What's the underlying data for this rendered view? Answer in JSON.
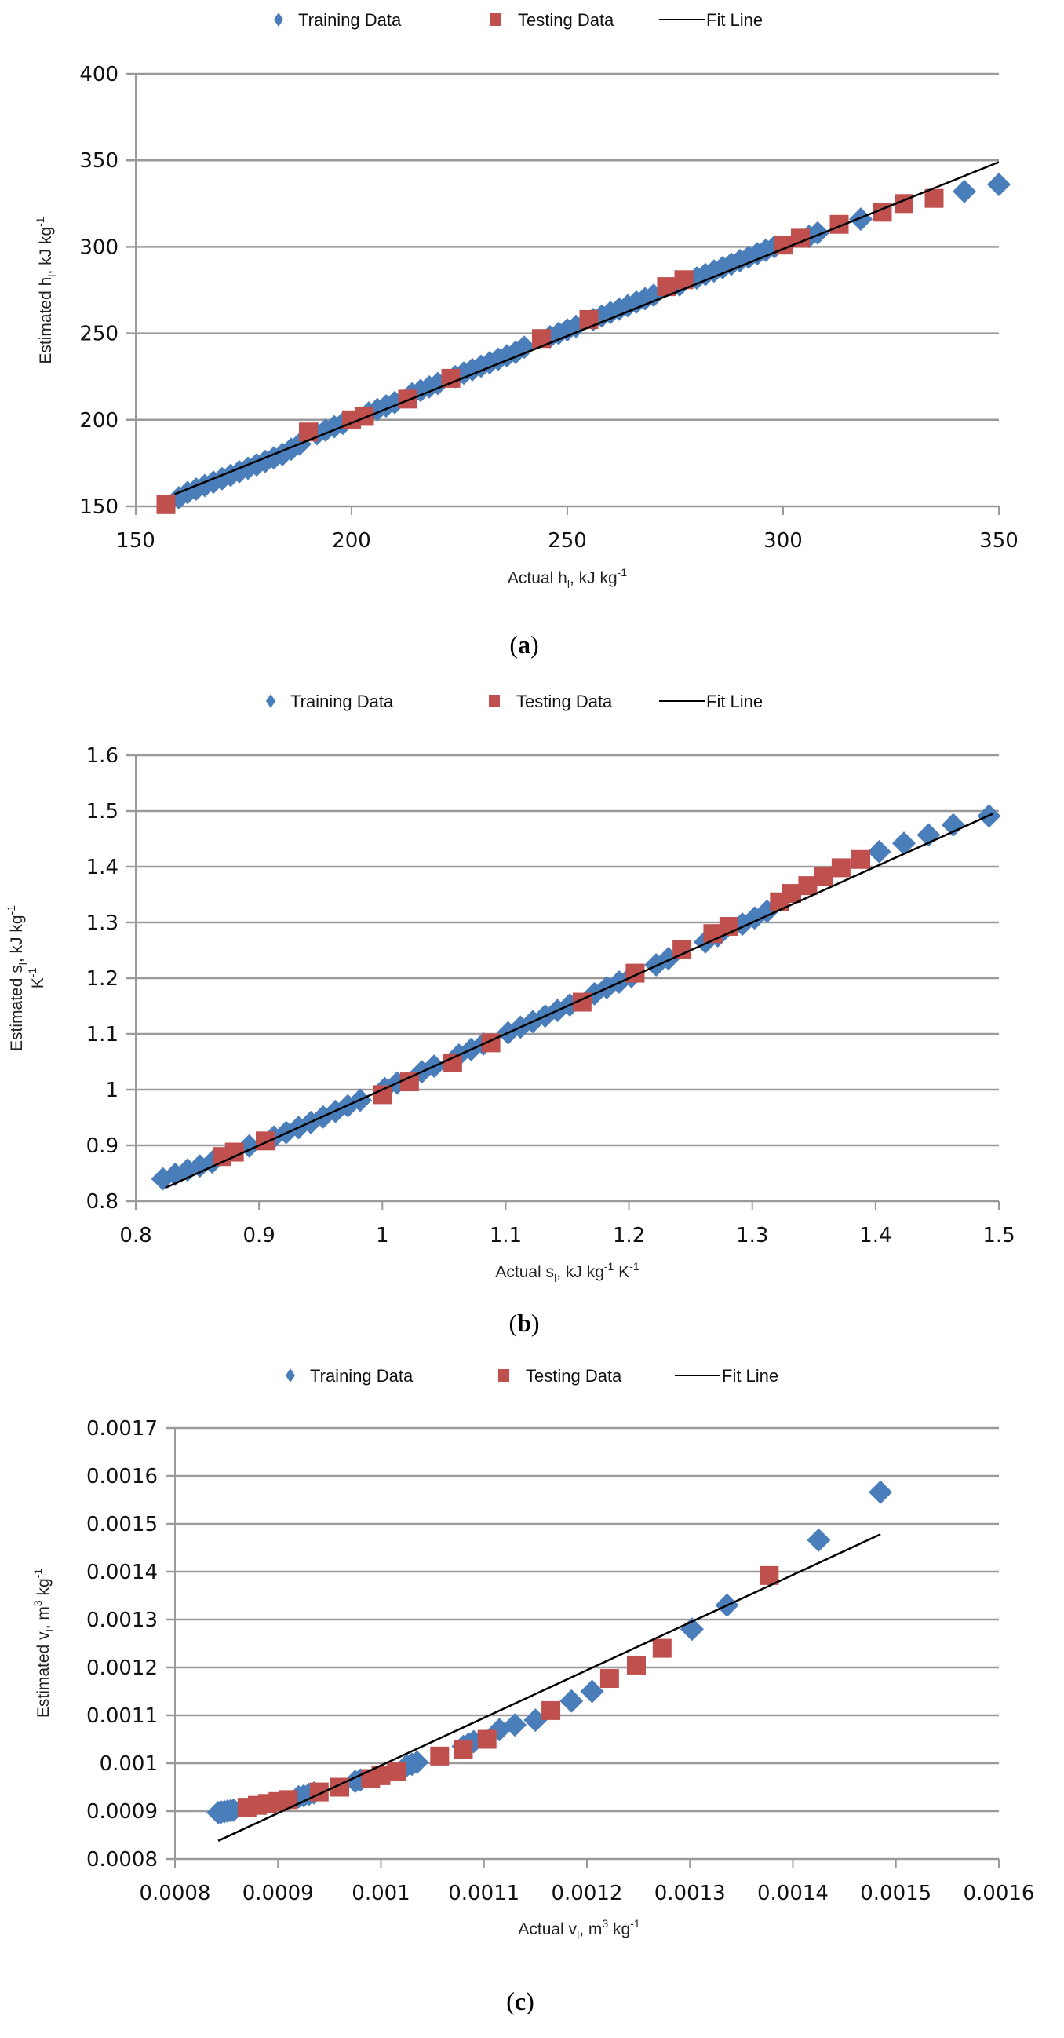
{
  "colors": {
    "training": "#4a7ebb",
    "testing": "#c0504d",
    "fit": "#000000",
    "grid": "#9a9a9a"
  },
  "chart_data": [
    {
      "id": "a",
      "type": "scatter",
      "caption_letter": "a",
      "legend": {
        "training": "Training Data",
        "testing": "Testing Data",
        "fit": "Fit Line",
        "placement": "top"
      },
      "xlabel": {
        "main": "Actual h",
        "sub": "l",
        "rest": ", kJ kg",
        "sup": "-1"
      },
      "ylabel": {
        "main": "Estimated h",
        "sub": "l",
        "rest": ", kJ kg",
        "sup": "-1"
      },
      "xlim": [
        150,
        350
      ],
      "ylim": [
        150,
        400
      ],
      "xticks": [
        "150",
        "200",
        "250",
        "300",
        "350"
      ],
      "yticks": [
        "150",
        "200",
        "250",
        "300",
        "350",
        "400"
      ],
      "xtick_values": [
        150,
        200,
        250,
        300,
        350
      ],
      "ytick_values": [
        150,
        200,
        250,
        300,
        350,
        400
      ],
      "grid": "horizontal",
      "fit": {
        "x": [
          159,
          350
        ],
        "y": [
          157,
          349
        ]
      },
      "training": {
        "x": [
          160,
          162,
          164,
          166,
          168,
          170,
          172,
          174,
          176,
          178,
          180,
          182,
          184,
          186,
          188,
          192,
          194,
          196,
          198,
          204,
          206,
          208,
          210,
          214,
          216,
          218,
          220,
          224,
          226,
          228,
          230,
          232,
          234,
          236,
          238,
          240,
          246,
          248,
          250,
          252,
          256,
          258,
          260,
          262,
          264,
          266,
          268,
          270,
          276,
          280,
          282,
          284,
          286,
          288,
          290,
          292,
          294,
          296,
          298,
          306,
          308,
          318,
          342,
          350
        ],
        "y": [
          155,
          158,
          160,
          162,
          164,
          166,
          168,
          170,
          172,
          174,
          176,
          178,
          180,
          183,
          186,
          192,
          194,
          196,
          198,
          204,
          206,
          208,
          210,
          215,
          217,
          219,
          221,
          225,
          227,
          229,
          231,
          233,
          235,
          237,
          239,
          242,
          248,
          250,
          252,
          254,
          258,
          260,
          262,
          264,
          266,
          268,
          270,
          272,
          278,
          282,
          284,
          286,
          288,
          290,
          292,
          294,
          296,
          298,
          300,
          306,
          308,
          316,
          332,
          336
        ]
      },
      "testing": {
        "x": [
          157,
          190,
          200,
          203,
          213,
          223,
          244,
          255,
          273,
          277,
          300,
          304,
          313,
          323,
          328,
          335
        ],
        "y": [
          151,
          193,
          200,
          202,
          212,
          224,
          247,
          258,
          277,
          281,
          301,
          305,
          313,
          320,
          325,
          328
        ]
      }
    },
    {
      "id": "b",
      "type": "scatter",
      "caption_letter": "b",
      "legend": {
        "training": "Training Data",
        "testing": "Testing Data",
        "fit": "Fit Line",
        "placement": "top"
      },
      "xlabel": {
        "main": "Actual s",
        "sub": "l",
        "rest": ", kJ kg",
        "sup": "-1",
        "rest2": " K",
        "sup2": "-1"
      },
      "ylabel": {
        "main": "Estimated s",
        "sub": "l",
        "rest": ", kJ kg",
        "sup": "-1",
        "line2": "K",
        "sup2": "-1"
      },
      "xlim": [
        0.8,
        1.5
      ],
      "ylim": [
        0.8,
        1.6
      ],
      "xticks": [
        "0.8",
        "0.9",
        "1",
        "1.1",
        "1.2",
        "1.3",
        "1.4",
        "1.5"
      ],
      "yticks": [
        "0.8",
        "0.9",
        "1",
        "1.1",
        "1.2",
        "1.3",
        "1.4",
        "1.5",
        "1.6"
      ],
      "xtick_values": [
        0.8,
        0.9,
        1.0,
        1.1,
        1.2,
        1.3,
        1.4,
        1.5
      ],
      "ytick_values": [
        0.8,
        0.9,
        1.0,
        1.1,
        1.2,
        1.3,
        1.4,
        1.5,
        1.6
      ],
      "grid": "horizontal",
      "fit": {
        "x": [
          0.824,
          1.495
        ],
        "y": [
          0.824,
          1.495
        ]
      },
      "training": {
        "x": [
          0.822,
          0.832,
          0.842,
          0.852,
          0.862,
          0.892,
          0.912,
          0.922,
          0.932,
          0.942,
          0.952,
          0.962,
          0.972,
          0.982,
          1.002,
          1.012,
          1.032,
          1.042,
          1.062,
          1.072,
          1.082,
          1.102,
          1.112,
          1.122,
          1.132,
          1.142,
          1.152,
          1.172,
          1.182,
          1.192,
          1.202,
          1.222,
          1.232,
          1.262,
          1.272,
          1.292,
          1.302,
          1.312,
          1.403,
          1.423,
          1.443,
          1.463,
          1.492
        ],
        "y": [
          0.84,
          0.848,
          0.856,
          0.863,
          0.87,
          0.899,
          0.915,
          0.923,
          0.932,
          0.941,
          0.951,
          0.961,
          0.971,
          0.981,
          1.002,
          1.012,
          1.032,
          1.042,
          1.062,
          1.072,
          1.082,
          1.102,
          1.112,
          1.122,
          1.132,
          1.142,
          1.152,
          1.172,
          1.183,
          1.193,
          1.203,
          1.224,
          1.235,
          1.265,
          1.276,
          1.297,
          1.308,
          1.32,
          1.427,
          1.442,
          1.457,
          1.475,
          1.491
        ]
      },
      "testing": {
        "x": [
          0.87,
          0.88,
          0.905,
          1.0,
          1.022,
          1.057,
          1.088,
          1.162,
          1.205,
          1.243,
          1.268,
          1.281,
          1.322,
          1.332,
          1.345,
          1.358,
          1.372,
          1.388
        ],
        "y": [
          0.88,
          0.888,
          0.908,
          0.991,
          1.014,
          1.048,
          1.084,
          1.157,
          1.209,
          1.251,
          1.28,
          1.293,
          1.337,
          1.352,
          1.366,
          1.382,
          1.398,
          1.413
        ]
      }
    },
    {
      "id": "c",
      "type": "scatter",
      "caption_letter": "c",
      "legend": {
        "training": "Training Data",
        "testing": "Testing Data",
        "fit": "Fit Line",
        "placement": "top"
      },
      "xlabel": {
        "main": "Actual v",
        "sub": "l",
        "rest": ", m",
        "sup": "3",
        "rest2": " kg",
        "sup2": "-1"
      },
      "ylabel": {
        "main": "Estimated v",
        "sub": "l",
        "rest": ", m",
        "sup": "3",
        "rest2": " kg",
        "sup2": "-1"
      },
      "xlim": [
        0.0008,
        0.0016
      ],
      "ylim": [
        0.0008,
        0.0017
      ],
      "xticks": [
        "0.0008",
        "0.0009",
        "0.001",
        "0.0011",
        "0.0012",
        "0.0013",
        "0.0014",
        "0.0015",
        "0.0016"
      ],
      "yticks": [
        "0.0008",
        "0.0009",
        "0.001",
        "0.0011",
        "0.0012",
        "0.0013",
        "0.0014",
        "0.0015",
        "0.0016",
        "0.0017"
      ],
      "xtick_values": [
        0.0008,
        0.0009,
        0.001,
        0.0011,
        0.0012,
        0.0013,
        0.0014,
        0.0015,
        0.0016
      ],
      "ytick_values": [
        0.0008,
        0.0009,
        0.001,
        0.0011,
        0.0012,
        0.0013,
        0.0014,
        0.0015,
        0.0016,
        0.0017
      ],
      "grid": "horizontal",
      "fit": {
        "x": [
          0.000842,
          0.001485
        ],
        "y": [
          0.000838,
          0.001478
        ]
      },
      "training": {
        "x": [
          0.000842,
          0.000845,
          0.000848,
          0.000851,
          0.000854,
          0.000857,
          0.00092,
          0.000925,
          0.00093,
          0.000935,
          0.000975,
          0.00098,
          0.001025,
          0.00103,
          0.001035,
          0.00108,
          0.001085,
          0.00109,
          0.001115,
          0.00113,
          0.00115,
          0.001185,
          0.001205,
          0.001302,
          0.001336,
          0.001425,
          0.001485
        ],
        "y": [
          0.000897,
          0.000898,
          0.000899,
          0.0009,
          0.000901,
          0.000902,
          0.00093,
          0.000932,
          0.000935,
          0.000938,
          0.000962,
          0.000965,
          0.000995,
          0.000998,
          0.001002,
          0.001035,
          0.00104,
          0.001045,
          0.00107,
          0.00108,
          0.00109,
          0.00113,
          0.00115,
          0.00128,
          0.00133,
          0.001466,
          0.001566
        ]
      },
      "testing": {
        "x": [
          0.00087,
          0.00088,
          0.00089,
          0.0009,
          0.00091,
          0.00094,
          0.00096,
          0.00099,
          0.001,
          0.001015,
          0.001057,
          0.00108,
          0.001103,
          0.001165,
          0.001222,
          0.001248,
          0.001273,
          0.001377
        ],
        "y": [
          0.000908,
          0.000912,
          0.000916,
          0.00092,
          0.000924,
          0.00094,
          0.00095,
          0.000968,
          0.000974,
          0.000982,
          0.001015,
          0.001028,
          0.00105,
          0.00111,
          0.001177,
          0.001205,
          0.00124,
          0.001392
        ]
      }
    }
  ]
}
